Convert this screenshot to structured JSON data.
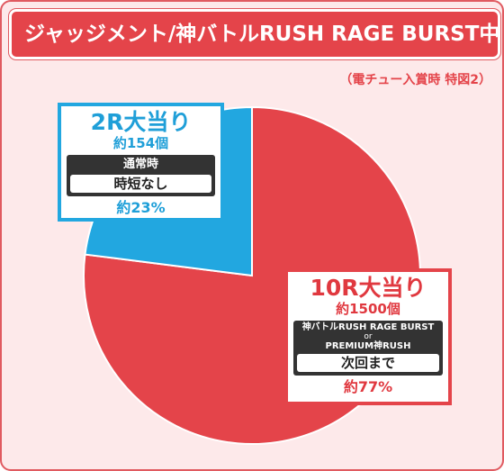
{
  "title": "ジャッジメント/神バトルRUSH RAGE BURST中",
  "note": "（電チュー入賞時 特図2）",
  "colors": {
    "red": "#e4444a",
    "blue": "#22a7e0",
    "frame_bg": "#fde9ea"
  },
  "chart_data": {
    "type": "pie",
    "slices": [
      {
        "label": "10R大当り",
        "value": 77,
        "color": "#e4444a"
      },
      {
        "label": "2R大当り",
        "value": 23,
        "color": "#22a7e0"
      }
    ]
  },
  "labels": {
    "r2": {
      "head": "2R大当り",
      "count": "約154個",
      "mode_title": "通常時",
      "mode_value": "時短なし",
      "pct": "約23%"
    },
    "r10": {
      "head": "10R大当り",
      "count": "約1500個",
      "mode_title_1": "神バトルRUSH RAGE BURST",
      "mode_or": "or",
      "mode_title_2": "PREMIUM神RUSH",
      "mode_value": "次回まで",
      "pct": "約77%"
    }
  }
}
